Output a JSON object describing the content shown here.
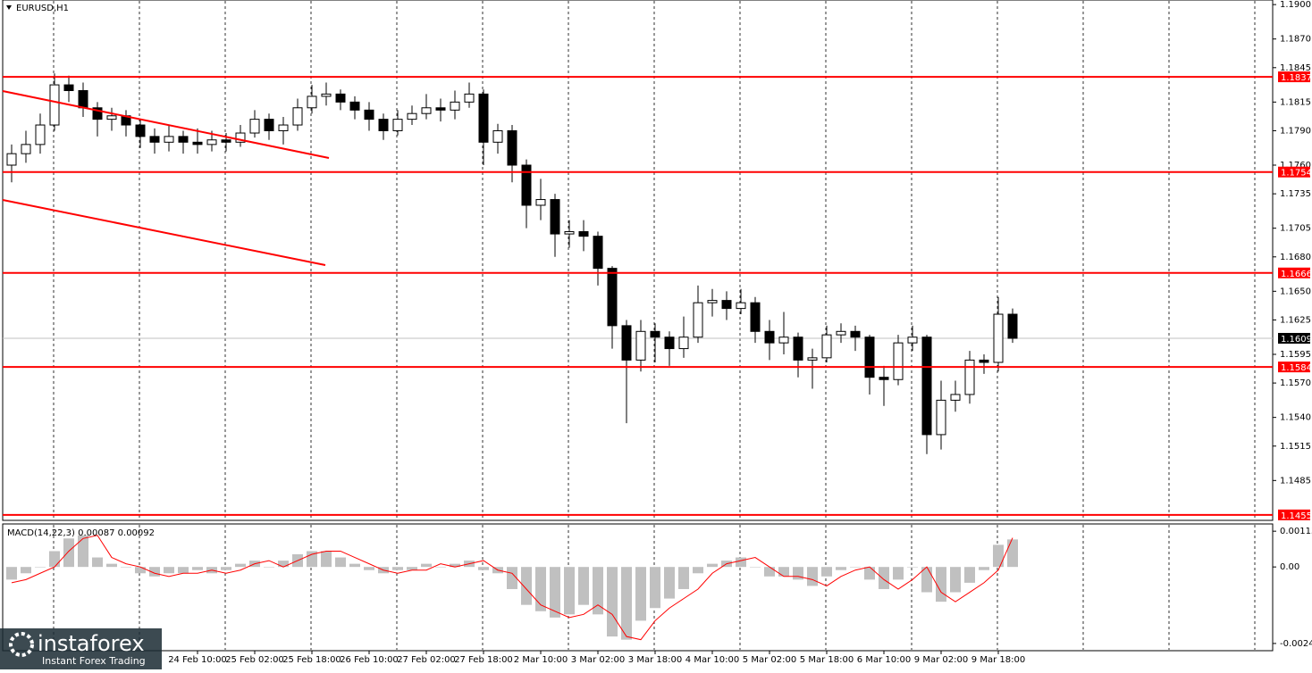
{
  "chart_data": [
    {
      "type": "candlestick",
      "title": "EURUSD,H1",
      "categories": [
        null,
        null,
        null,
        null,
        null,
        null,
        null,
        null,
        null,
        null,
        null,
        null,
        null,
        "24 Feb 10:00",
        null,
        null,
        null,
        "25 Feb 02:00",
        null,
        null,
        null,
        "25 Feb 18:00",
        null,
        null,
        null,
        "26 Feb 10:00",
        null,
        null,
        null,
        "27 Feb 02:00",
        null,
        null,
        null,
        "27 Feb 18:00",
        null,
        null,
        null,
        "2 Mar 10:00",
        null,
        null,
        null,
        "3 Mar 02:00",
        null,
        null,
        null,
        "3 Mar 18:00",
        null,
        null,
        null,
        "4 Mar 10:00",
        null,
        null,
        null,
        "5 Mar 02:00",
        null,
        null,
        null,
        "5 Mar 18:00",
        null,
        null,
        null,
        "6 Mar 10:00",
        null,
        null,
        null,
        "9 Mar 02:00",
        null,
        null,
        null,
        "9 Mar 18:00",
        null
      ],
      "open": [
        1.176,
        1.177,
        1.1778,
        1.1795,
        1.183,
        1.1825,
        1.181,
        1.18,
        1.1803,
        1.1795,
        1.1785,
        1.178,
        1.1785,
        1.178,
        1.1778,
        1.1782,
        1.178,
        1.1788,
        1.18,
        1.179,
        1.1795,
        1.181,
        1.182,
        1.1822,
        1.1815,
        1.1808,
        1.18,
        1.179,
        1.18,
        1.1805,
        1.181,
        1.1808,
        1.1815,
        1.1822,
        1.178,
        1.179,
        1.176,
        1.1725,
        1.173,
        1.17,
        1.1702,
        1.1698,
        1.167,
        1.162,
        1.159,
        1.1615,
        1.161,
        1.16,
        1.161,
        1.164,
        1.1642,
        1.1635,
        1.164,
        1.1615,
        1.1605,
        1.161,
        1.159,
        1.1592,
        1.1612,
        1.1615,
        1.161,
        1.1575,
        1.1573,
        1.1605,
        1.161,
        1.1525,
        1.1555,
        1.156,
        1.159,
        1.1588,
        1.163
      ],
      "high": [
        1.1778,
        1.179,
        1.1805,
        1.184,
        1.1838,
        1.1832,
        1.1815,
        1.181,
        1.1808,
        1.18,
        1.1792,
        1.1795,
        1.179,
        1.1792,
        1.179,
        1.1788,
        1.1795,
        1.1808,
        1.1805,
        1.1802,
        1.1818,
        1.183,
        1.1832,
        1.1826,
        1.182,
        1.1815,
        1.1805,
        1.1808,
        1.1812,
        1.1822,
        1.1818,
        1.1825,
        1.1832,
        1.1826,
        1.1796,
        1.1795,
        1.1765,
        1.1748,
        1.1735,
        1.1712,
        1.1712,
        1.1702,
        1.1672,
        1.1625,
        1.1625,
        1.1622,
        1.1615,
        1.1628,
        1.1655,
        1.1652,
        1.165,
        1.1652,
        1.1645,
        1.1625,
        1.1632,
        1.1614,
        1.16,
        1.162,
        1.1622,
        1.162,
        1.1612,
        1.1585,
        1.1612,
        1.162,
        1.1612,
        1.1572,
        1.1572,
        1.1598,
        1.1595,
        1.1645,
        1.1635
      ],
      "low": [
        1.1745,
        1.1762,
        1.177,
        1.179,
        1.1815,
        1.1802,
        1.1785,
        1.179,
        1.1785,
        1.1775,
        1.177,
        1.1772,
        1.177,
        1.177,
        1.1772,
        1.1772,
        1.1776,
        1.1784,
        1.1782,
        1.1778,
        1.179,
        1.1805,
        1.1812,
        1.1808,
        1.18,
        1.179,
        1.1782,
        1.1786,
        1.1795,
        1.18,
        1.1798,
        1.18,
        1.181,
        1.176,
        1.177,
        1.1745,
        1.1705,
        1.1712,
        1.168,
        1.1688,
        1.1685,
        1.1655,
        1.16,
        1.1535,
        1.158,
        1.1588,
        1.1585,
        1.1592,
        1.1605,
        1.1628,
        1.1625,
        1.163,
        1.1605,
        1.159,
        1.1595,
        1.1575,
        1.1565,
        1.1588,
        1.1605,
        1.1598,
        1.156,
        1.155,
        1.1568,
        1.1598,
        1.1508,
        1.1512,
        1.1545,
        1.1552,
        1.1578,
        1.158,
        1.1605
      ],
      "close": [
        1.177,
        1.1778,
        1.1795,
        1.183,
        1.1825,
        1.181,
        1.18,
        1.1803,
        1.1795,
        1.1785,
        1.178,
        1.1785,
        1.178,
        1.1778,
        1.1782,
        1.178,
        1.1788,
        1.18,
        1.179,
        1.1795,
        1.181,
        1.182,
        1.1822,
        1.1815,
        1.1808,
        1.18,
        1.179,
        1.18,
        1.1805,
        1.181,
        1.1808,
        1.1815,
        1.1822,
        1.178,
        1.179,
        1.176,
        1.1725,
        1.173,
        1.17,
        1.1702,
        1.1698,
        1.167,
        1.162,
        1.159,
        1.1615,
        1.161,
        1.16,
        1.161,
        1.164,
        1.1642,
        1.1635,
        1.164,
        1.1615,
        1.1605,
        1.161,
        1.159,
        1.1592,
        1.1612,
        1.1615,
        1.161,
        1.1575,
        1.1573,
        1.1605,
        1.161,
        1.1525,
        1.1555,
        1.156,
        1.159,
        1.1588,
        1.163,
        1.1609
      ],
      "up_color": "#ffffff",
      "down_color": "#000000",
      "ylim": [
        1.1451,
        1.1904
      ],
      "yticks": [
        {
          "value": 1.19,
          "label": "1.1900"
        },
        {
          "value": 1.187,
          "label": "1.1870"
        },
        1.1845,
        1.1815,
        {
          "value": 1.179,
          "label": "1.1790"
        },
        {
          "value": 1.176,
          "label": "1.1760"
        },
        1.1735,
        1.1705,
        {
          "value": 1.168,
          "label": "1.1680"
        },
        {
          "value": 1.165,
          "label": "1.1650"
        },
        1.1625,
        1.1595,
        {
          "value": 1.157,
          "label": "1.1570"
        },
        {
          "value": 1.154,
          "label": "1.1540"
        },
        1.1515,
        1.1485
      ],
      "levels": [
        1.1837,
        1.1754,
        1.1666,
        1.1584,
        1.1455
      ],
      "level_color": "#ff0000",
      "last_price": 1.1609
    },
    {
      "type": "macd",
      "title": "MACD(14,22,3) 0.00087 0.00092",
      "values": [
        -0.0004,
        -0.0002,
        0,
        0.0005,
        0.0009,
        0.001,
        0.0003,
        0.0001,
        0,
        -0.0002,
        -0.0003,
        -0.0002,
        -0.0002,
        -0.0001,
        -0.0002,
        -0.0001,
        0.0001,
        0.0002,
        0,
        0.0002,
        0.0004,
        0.0005,
        0.0005,
        0.0003,
        0.0001,
        -0.0001,
        -0.0002,
        -0.0001,
        -0.0001,
        0.0001,
        0,
        0.0001,
        0.0002,
        -0.0001,
        -0.0002,
        -0.0007,
        -0.0012,
        -0.0014,
        -0.0016,
        -0.0015,
        -0.0012,
        -0.0015,
        -0.0022,
        -0.0023,
        -0.0017,
        -0.0013,
        -0.001,
        -0.0007,
        -0.0002,
        0.0001,
        0.0002,
        0.0003,
        0,
        -0.0003,
        -0.0003,
        -0.0004,
        -0.0006,
        -0.0003,
        -0.0001,
        0,
        -0.0004,
        -0.0007,
        -0.0004,
        0,
        -0.0008,
        -0.0011,
        -0.0008,
        -0.0005,
        -0.0001,
        0.0007,
        0.00087
      ],
      "signal": [
        -0.0005,
        -0.0004,
        -0.0002,
        0,
        0.0005,
        0.0009,
        0.001,
        0.0003,
        0.0001,
        0,
        -0.0002,
        -0.0003,
        -0.0002,
        -0.0002,
        -0.0001,
        -0.0002,
        -0.0001,
        0.0001,
        0.0002,
        0,
        0.0002,
        0.0004,
        0.0005,
        0.0005,
        0.0003,
        0.0001,
        -0.0001,
        -0.0002,
        -0.0001,
        -0.0001,
        0.0001,
        0,
        0.0001,
        0.0002,
        -0.0001,
        -0.0002,
        -0.0007,
        -0.0012,
        -0.0014,
        -0.0016,
        -0.0015,
        -0.0012,
        -0.0015,
        -0.0022,
        -0.0023,
        -0.0017,
        -0.0013,
        -0.001,
        -0.0007,
        -0.0002,
        0.0001,
        0.0002,
        0.0003,
        0,
        -0.0003,
        -0.0003,
        -0.0004,
        -0.0006,
        -0.0003,
        -0.0001,
        0,
        -0.0004,
        -0.0007,
        -0.0004,
        0,
        -0.0008,
        -0.0011,
        -0.0008,
        -0.0005,
        -0.0001,
        0.00092
      ],
      "color": "#c0c0c0",
      "signal_color": "#ff0000",
      "ylim": [
        -0.00262,
        0.00136
      ],
      "yticks": [
        0.00113,
        {
          "value": 0,
          "label": "0.00"
        },
        -0.00242
      ]
    }
  ],
  "logo": {
    "brand": "instaforex",
    "tagline": "Instant Forex Trading"
  }
}
